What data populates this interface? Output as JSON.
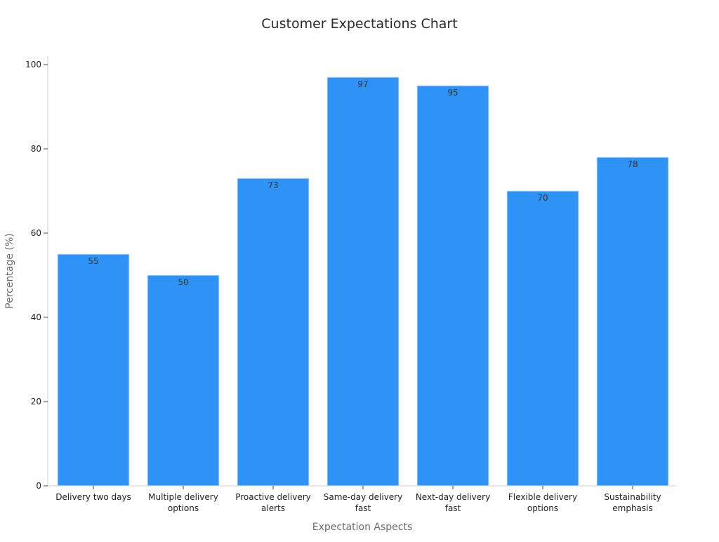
{
  "chart_data": {
    "type": "bar",
    "title": "Customer Expectations Chart",
    "xlabel": "Expectation Aspects",
    "ylabel": "Percentage (%)",
    "categories": [
      [
        "Delivery two days"
      ],
      [
        "Multiple delivery",
        "options"
      ],
      [
        "Proactive delivery",
        "alerts"
      ],
      [
        "Same-day delivery",
        "fast"
      ],
      [
        "Next-day delivery",
        "fast"
      ],
      [
        "Flexible delivery",
        "options"
      ],
      [
        "Sustainability",
        "emphasis"
      ]
    ],
    "values": [
      55,
      50,
      73,
      97,
      95,
      70,
      78
    ],
    "ylim": [
      0,
      102
    ],
    "yticks": [
      0,
      20,
      40,
      60,
      80,
      100
    ],
    "grid": false,
    "bar_color": "#2f92f7",
    "bar_edge_color": "#d6e6f8"
  }
}
